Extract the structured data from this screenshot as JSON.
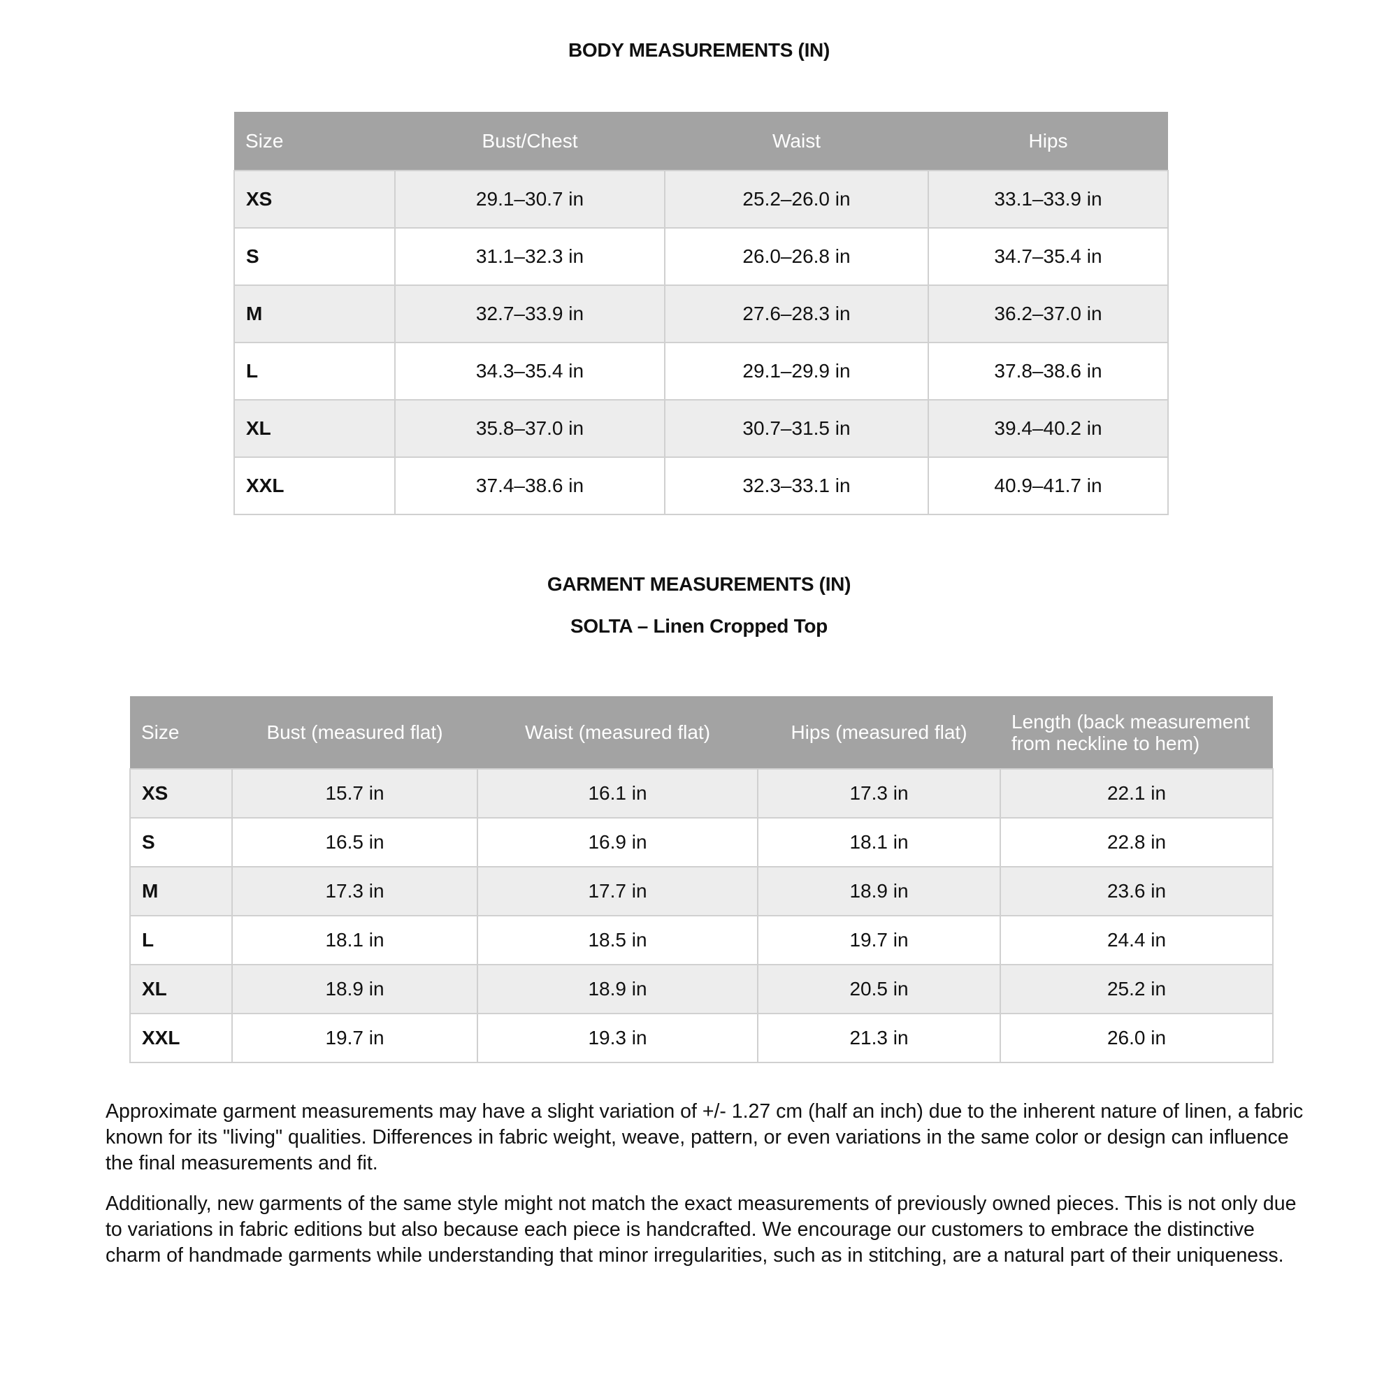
{
  "body_section": {
    "title": "BODY MEASUREMENTS (IN)",
    "headers": [
      "Size",
      "Bust/Chest",
      "Waist",
      "Hips"
    ],
    "rows": [
      [
        "XS",
        "29.1–30.7 in",
        "25.2–26.0 in",
        "33.1–33.9 in"
      ],
      [
        "S",
        "31.1–32.3 in",
        "26.0–26.8 in",
        "34.7–35.4 in"
      ],
      [
        "M",
        "32.7–33.9 in",
        "27.6–28.3 in",
        "36.2–37.0 in"
      ],
      [
        "L",
        "34.3–35.4 in",
        "29.1–29.9 in",
        "37.8–38.6 in"
      ],
      [
        "XL",
        "35.8–37.0 in",
        "30.7–31.5 in",
        "39.4–40.2 in"
      ],
      [
        "XXL",
        "37.4–38.6 in",
        "32.3–33.1 in",
        "40.9–41.7 in"
      ]
    ]
  },
  "garment_section": {
    "title": "GARMENT MEASUREMENTS (IN)",
    "subtitle": "SOLTA – Linen Cropped Top",
    "headers": [
      "Size",
      "Bust (measured flat)",
      "Waist (measured flat)",
      "Hips (measured flat)",
      "Length (back measurement from neckline to hem)"
    ],
    "rows": [
      [
        "XS",
        "15.7 in",
        "16.1 in",
        "17.3 in",
        "22.1 in"
      ],
      [
        "S",
        "16.5 in",
        "16.9 in",
        "18.1 in",
        "22.8 in"
      ],
      [
        "M",
        "17.3 in",
        "17.7 in",
        "18.9 in",
        "23.6 in"
      ],
      [
        "L",
        "18.1 in",
        "18.5 in",
        "19.7 in",
        "24.4 in"
      ],
      [
        "XL",
        "18.9 in",
        "18.9 in",
        "20.5 in",
        "25.2 in"
      ],
      [
        "XXL",
        "19.7 in",
        "19.3 in",
        "21.3 in",
        "26.0 in"
      ]
    ]
  },
  "notes": [
    "Approximate garment measurements may have a slight variation of +/- 1.27 cm (half an inch) due to the inherent nature of linen, a fabric known for its \"living\" qualities. Differences in fabric weight, weave, pattern, or even variations in the same color or design can influence the final measurements and fit.",
    "Additionally, new garments of the same style might not match the exact measurements of previously owned pieces. This is not only due to variations in fabric editions but also because each piece is handcrafted. We encourage our customers to embrace the distinctive charm of handmade garments while understanding that minor irregularities, such as in stitching, are a natural part of their uniqueness."
  ],
  "colors": {
    "header_bg": "#a3a3a3",
    "alt_row_bg": "#ededed",
    "border": "#d0d0d0"
  }
}
